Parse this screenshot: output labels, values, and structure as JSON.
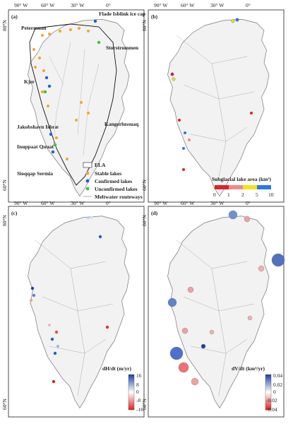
{
  "panels": [
    {
      "id": "a",
      "label": "(a)"
    },
    {
      "id": "b",
      "label": "(b)"
    },
    {
      "id": "c",
      "label": "(c)"
    },
    {
      "id": "d",
      "label": "(d)"
    }
  ],
  "graticule": {
    "top_lons": [
      "90° W",
      "60° W",
      "30° W",
      "0°"
    ],
    "lats": [
      "80°N",
      "60°N"
    ]
  },
  "panel_a": {
    "places": [
      "Petermann",
      "Flade Isblink ice cap",
      "Storstrommen",
      "Kjer",
      "Jakobshavn Isbræ",
      "Inuppaat Quuat",
      "Sioqqap Sermia",
      "Kangerlussuaq"
    ],
    "legend": [
      {
        "label": "ELA",
        "kind": "box"
      },
      {
        "label": "Stable lakes",
        "color": "#f5a623"
      },
      {
        "label": "Confirmed lakes",
        "color": "#1f5fd0"
      },
      {
        "label": "Unconfirmed lakes",
        "color": "#3cc43c"
      },
      {
        "label": "Meltwater routeways",
        "kind": "line"
      }
    ]
  },
  "panel_b": {
    "title": "Subglacial lake area (km²)",
    "ticks": [
      "0",
      "1",
      "2",
      "5",
      "10"
    ],
    "colors": [
      "#e0202a",
      "#f08a8a",
      "#f2e21a",
      "#2a7ae0"
    ]
  },
  "panel_c": {
    "title": "dH/dt (m/yr)",
    "ticks": [
      "16",
      "8",
      "0",
      "-8",
      "-16"
    ],
    "top": "#1c3fa8",
    "bottom": "#e02020"
  },
  "panel_d": {
    "title": "dV/dt (km³/yr)",
    "ticks": [
      "0.04",
      "0.02",
      "0",
      "-0.02",
      "-0.04"
    ],
    "top": "#1c3fa8",
    "bottom": "#e02020"
  },
  "colors": {
    "stable": "#f5a623",
    "confirmed": "#1f5fd0",
    "unconfirmed": "#3cc43c",
    "ice": "#f2f2f2",
    "coast": "#888"
  }
}
